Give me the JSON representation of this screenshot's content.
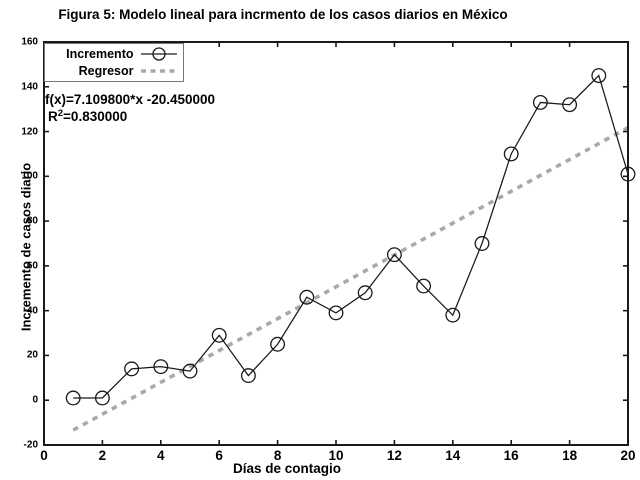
{
  "window": {
    "background": "#ffffff"
  },
  "figure": {
    "title": "Figura 5: Modelo lineal para incrmento de los casos diarios en México",
    "annotation": {
      "line1": "f(x)=7.109800*x -20.450000",
      "r2_base": "R",
      "r2_sup": "2",
      "r2_rest": "=0.830000"
    }
  },
  "chart_data": {
    "type": "line",
    "title": "Figura 5: Modelo lineal para incrmento de los casos diarios en México",
    "xlabel": "Días de contagio",
    "ylabel": "Incremento de casos diario",
    "xlim": [
      0,
      20
    ],
    "ylim": [
      -20,
      160
    ],
    "xticks": [
      0,
      2,
      4,
      6,
      8,
      10,
      12,
      14,
      16,
      18,
      20
    ],
    "yticks": [
      -20,
      0,
      20,
      40,
      60,
      80,
      100,
      120,
      140,
      160
    ],
    "grid": false,
    "legend_position": "top-left",
    "x": [
      1,
      2,
      3,
      4,
      5,
      6,
      7,
      8,
      9,
      10,
      11,
      12,
      13,
      14,
      15,
      16,
      17,
      18,
      19,
      20
    ],
    "series": [
      {
        "name": "Incremento",
        "type": "line+markers",
        "marker": "open-circle",
        "color": "#1a1a1a",
        "values": [
          1,
          1,
          14,
          15,
          13,
          29,
          11,
          25,
          46,
          39,
          48,
          65,
          51,
          38,
          70,
          110,
          133,
          132,
          145,
          101
        ]
      },
      {
        "name": "Regresor",
        "type": "regression-dashed",
        "color": "#a9a9a9",
        "slope": 7.1098,
        "intercept": -20.45,
        "r_squared": 0.83,
        "x_range": [
          1,
          20
        ]
      }
    ]
  },
  "colors": {
    "frame": "#1a1a1a",
    "series": "#1a1a1a",
    "regressor": "#a9a9a9",
    "legend_border": "#787878",
    "text": "#000000"
  }
}
